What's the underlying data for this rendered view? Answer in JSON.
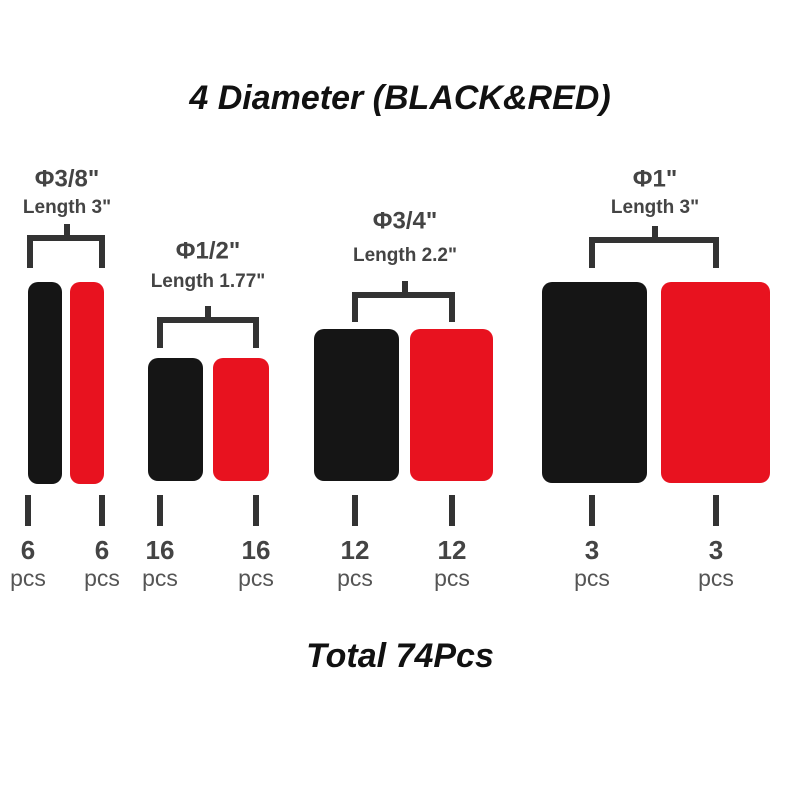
{
  "title": "4 Diameter (BLACK&RED)",
  "groups": [
    {
      "diameter": "Φ3/8\"",
      "length": "Length  3\"",
      "items": [
        {
          "count": "6",
          "unit": "pcs"
        },
        {
          "count": "6",
          "unit": "pcs"
        }
      ]
    },
    {
      "diameter": "Φ1/2\"",
      "length": "Length  1.77\"",
      "items": [
        {
          "count": "16",
          "unit": "pcs"
        },
        {
          "count": "16",
          "unit": "pcs"
        }
      ]
    },
    {
      "diameter": "Φ3/4\"",
      "length": "Length  2.2\"",
      "items": [
        {
          "count": "12",
          "unit": "pcs"
        },
        {
          "count": "12",
          "unit": "pcs"
        }
      ]
    },
    {
      "diameter": "Φ1\"",
      "length": "Length  3\"",
      "items": [
        {
          "count": "3",
          "unit": "pcs"
        },
        {
          "count": "3",
          "unit": "pcs"
        }
      ]
    }
  ],
  "total": "Total 74Pcs"
}
